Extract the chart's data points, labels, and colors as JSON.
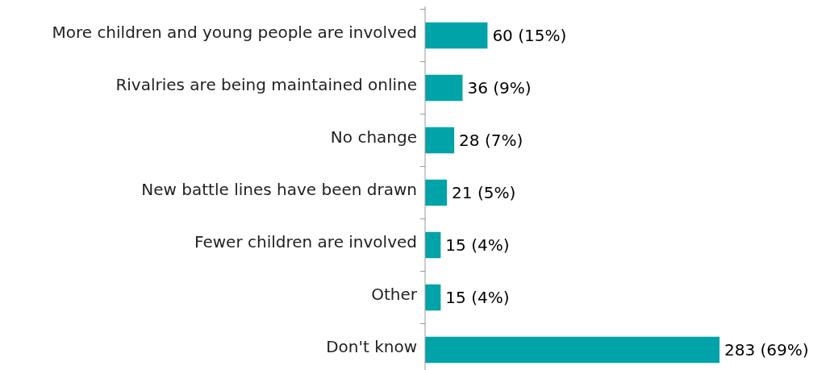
{
  "chart_data": {
    "type": "bar",
    "orientation": "horizontal",
    "categories": [
      "More children and young people are involved",
      "Rivalries are being maintained online",
      "No change",
      "New battle lines have been drawn",
      "Fewer children are involved",
      "Other",
      "Don't know"
    ],
    "values": [
      60,
      36,
      28,
      21,
      15,
      15,
      283
    ],
    "value_labels": [
      "60 (15%)",
      "36 (9%)",
      "28 (7%)",
      "21 (5%)",
      "15 (4%)",
      "15 (4%)",
      "283 (69%)"
    ],
    "color": "#00a3a8"
  }
}
